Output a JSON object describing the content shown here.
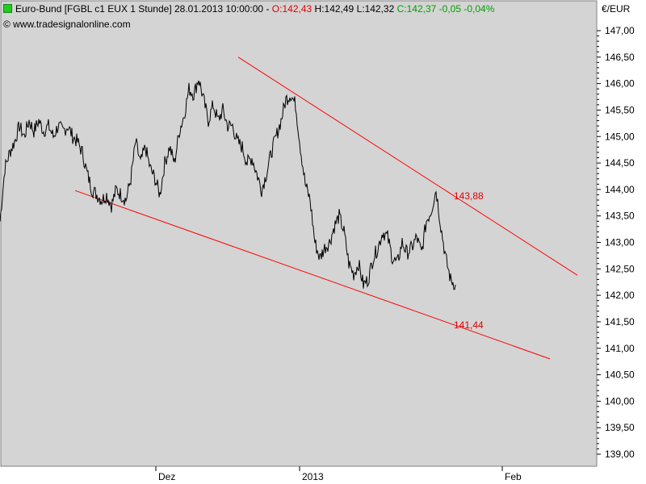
{
  "header": {
    "instrument": "Euro-Bund [FGBL c1 EUX  1 Stunde] 28.01.2013 10:00:00",
    "open": "O:142,43",
    "high": "H:142,49",
    "low": "L:142,32",
    "close": "C:142,37",
    "change": "-0,05",
    "change_pct": "-0,04%",
    "watermark": "© www.tradesignalonline.com"
  },
  "chart_data": {
    "type": "line",
    "currency_label": "€/EUR",
    "ylim": [
      138.9,
      147.2
    ],
    "y_ticks": [
      "147,00",
      "146,50",
      "146,00",
      "145,50",
      "145,00",
      "144,50",
      "144,00",
      "143,50",
      "143,00",
      "142,50",
      "142,00",
      "141,50",
      "141,00",
      "140,50",
      "140,00",
      "139,50",
      "139,00"
    ],
    "y_tick_values": [
      147.0,
      146.5,
      146.0,
      145.5,
      145.0,
      144.5,
      144.0,
      143.5,
      143.0,
      142.5,
      142.0,
      141.5,
      141.0,
      140.5,
      140.0,
      139.5,
      139.0
    ],
    "x_ticks": [
      "Dez",
      "2013",
      "Feb"
    ],
    "series": [
      {
        "color": "#000000",
        "x": [
          0,
          6,
          12,
          18,
          24,
          30,
          36,
          42,
          48,
          54,
          60,
          66,
          72,
          78,
          84,
          90,
          96,
          102,
          108,
          114,
          120,
          126,
          132,
          138,
          144,
          150,
          156,
          162,
          168,
          174,
          180,
          186,
          192,
          198,
          204,
          210,
          216,
          222,
          228,
          234,
          240,
          246,
          252,
          258,
          264,
          270,
          276,
          282,
          288,
          294,
          300,
          306,
          312,
          318,
          324,
          330,
          336,
          342,
          348,
          354,
          360,
          366,
          372,
          378,
          384,
          390,
          396,
          402,
          408,
          414,
          420,
          426,
          432,
          438,
          444,
          450,
          456,
          462,
          468,
          474,
          480,
          486,
          492,
          498,
          504,
          510,
          516,
          522,
          528,
          534,
          540,
          546,
          552,
          558,
          564
        ],
        "y": [
          143.4,
          144.4,
          144.7,
          144.9,
          145.2,
          145.0,
          145.3,
          145.1,
          145.3,
          145.1,
          145.2,
          145.0,
          145.2,
          145.1,
          145.2,
          145.0,
          144.9,
          144.7,
          144.3,
          144.0,
          143.9,
          143.8,
          143.9,
          143.7,
          144.0,
          143.9,
          143.8,
          144.2,
          144.9,
          144.5,
          144.8,
          144.4,
          144.2,
          143.9,
          144.5,
          144.8,
          144.5,
          145.1,
          145.4,
          145.9,
          145.8,
          146.1,
          145.7,
          145.3,
          145.6,
          145.3,
          145.5,
          145.2,
          145.2,
          144.9,
          144.8,
          144.5,
          144.6,
          144.3,
          144.0,
          144.3,
          144.7,
          145.0,
          145.3,
          145.7,
          145.8,
          145.6,
          144.8,
          144.1,
          143.8,
          143.0,
          142.7,
          142.9,
          143.0,
          143.3,
          143.5,
          143.2,
          142.6,
          142.4,
          142.6,
          142.2,
          142.3,
          142.7,
          142.9,
          143.2,
          143.1,
          142.7,
          142.6,
          143.0,
          142.8,
          142.9,
          143.1,
          142.8,
          143.4,
          143.6,
          144.0,
          143.3,
          142.7,
          142.3,
          142.2
        ]
      }
    ],
    "trend_lines": [
      {
        "color": "#ff0000",
        "from": [
          295,
          146.5
        ],
        "to": [
          715,
          142.38
        ]
      },
      {
        "color": "#ff0000",
        "from": [
          93,
          143.98
        ],
        "to": [
          681,
          140.8
        ]
      }
    ],
    "annotations": [
      {
        "text": "143,88",
        "x": 562,
        "y": 143.88,
        "color": "#e00000"
      },
      {
        "text": "141,44",
        "x": 562,
        "y": 141.44,
        "color": "#e00000"
      }
    ],
    "grid": false,
    "legend": "none"
  }
}
